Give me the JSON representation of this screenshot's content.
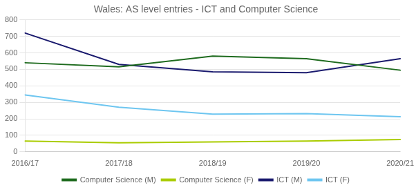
{
  "chart_data": {
    "type": "line",
    "title": "Wales: AS level entries - ICT and Computer Science",
    "categories": [
      "2016/17",
      "2017/18",
      "2018/19",
      "2019/20",
      "2020/21"
    ],
    "series": [
      {
        "name": "Computer Science (M)",
        "color": "#1e6b1e",
        "values": [
          540,
          515,
          580,
          565,
          495
        ]
      },
      {
        "name": "Computer Science (F)",
        "color": "#aacc00",
        "values": [
          65,
          55,
          60,
          65,
          75
        ]
      },
      {
        "name": "ICT (M)",
        "color": "#1a1a6e",
        "values": [
          720,
          530,
          485,
          480,
          565
        ]
      },
      {
        "name": "ICT (F)",
        "color": "#6ec6f0",
        "values": [
          345,
          270,
          228,
          232,
          213
        ]
      }
    ],
    "ylim": [
      0,
      800
    ],
    "yticks": [
      0,
      100,
      200,
      300,
      400,
      500,
      600,
      700,
      800
    ],
    "grid": true,
    "legend": "bottom"
  }
}
